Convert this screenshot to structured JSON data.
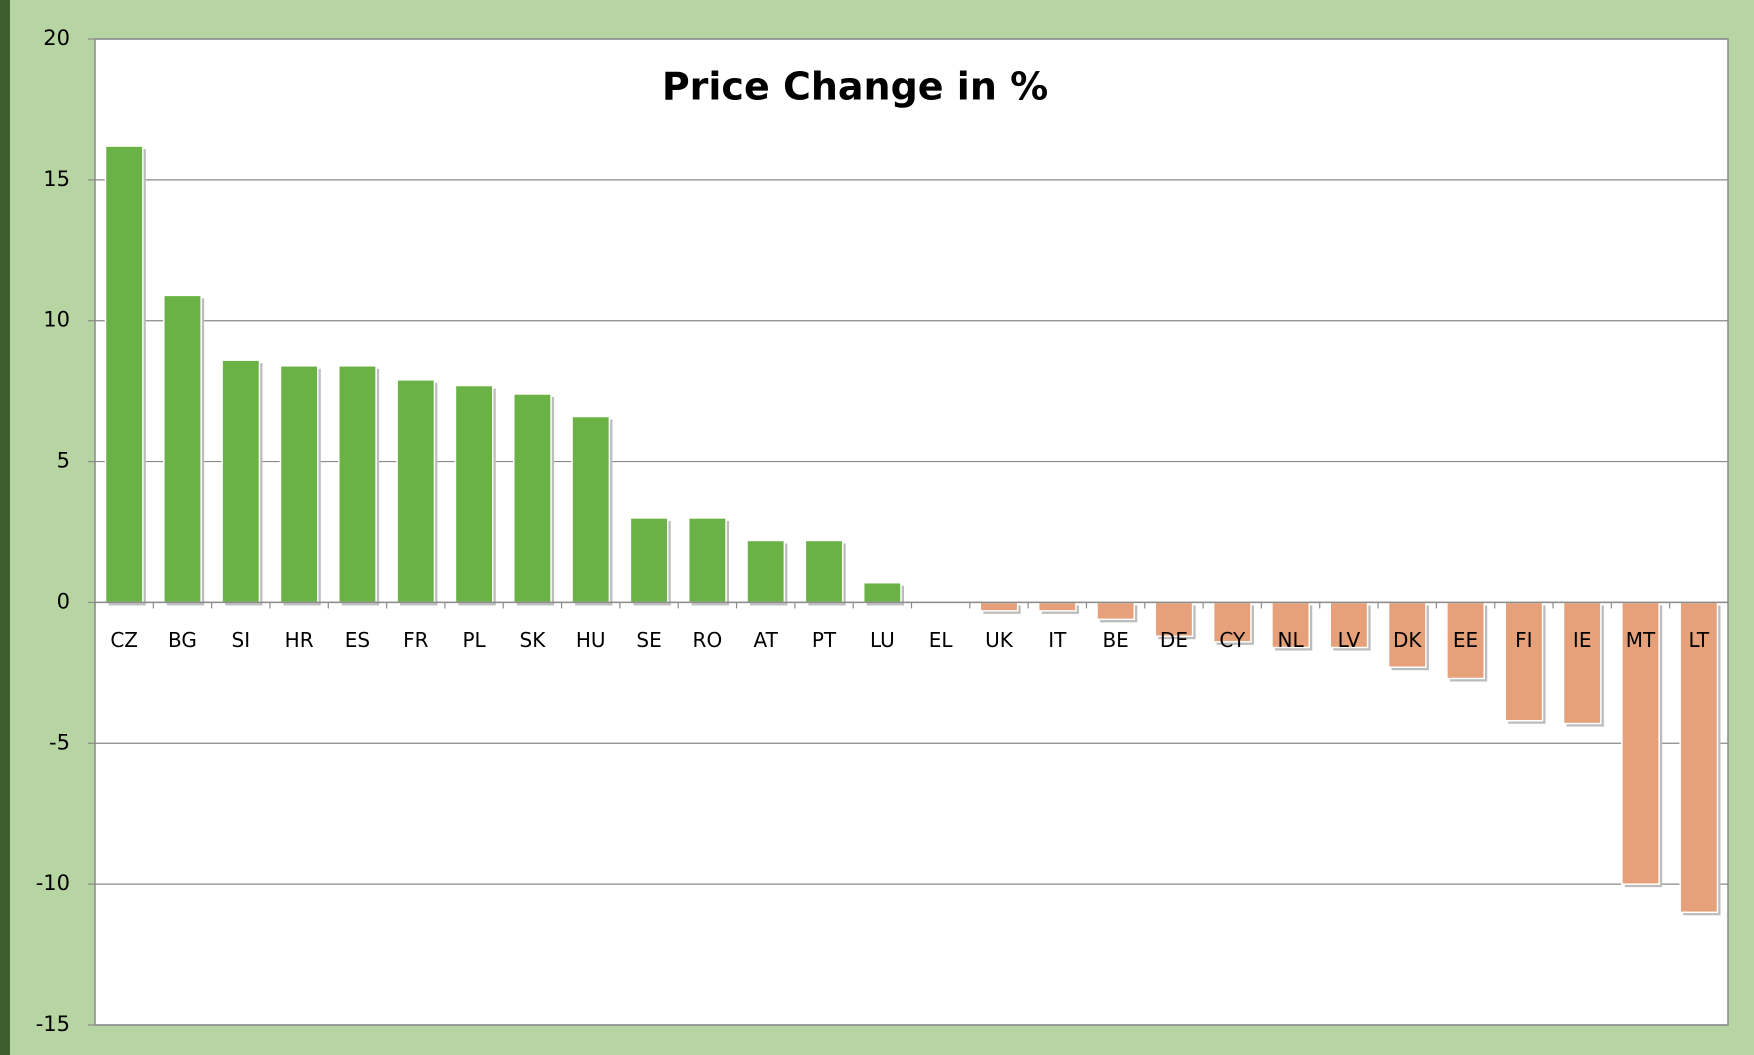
{
  "chart_data": {
    "type": "bar",
    "title": "Price Change in %",
    "categories": [
      "CZ",
      "BG",
      "SI",
      "HR",
      "ES",
      "FR",
      "PL",
      "SK",
      "HU",
      "SE",
      "RO",
      "AT",
      "PT",
      "LU",
      "EL",
      "UK",
      "IT",
      "BE",
      "DE",
      "CY",
      "NL",
      "LV",
      "DK",
      "EE",
      "FI",
      "IE",
      "MT",
      "LT"
    ],
    "values": [
      16.2,
      10.9,
      8.6,
      8.4,
      8.4,
      7.9,
      7.7,
      7.4,
      6.6,
      3.0,
      3.0,
      2.2,
      2.2,
      0.7,
      0,
      -0.3,
      -0.3,
      -0.6,
      -1.2,
      -1.4,
      -1.6,
      -1.6,
      -2.3,
      -2.7,
      -4.2,
      -4.3,
      -10.0,
      -11.0
    ],
    "color": "#6ab245",
    "negative_color": "#e6a07a",
    "ylim": [
      -15,
      20
    ],
    "yticks": [
      -15,
      -10,
      -5,
      0,
      5,
      10,
      15,
      20
    ],
    "grid": true
  }
}
